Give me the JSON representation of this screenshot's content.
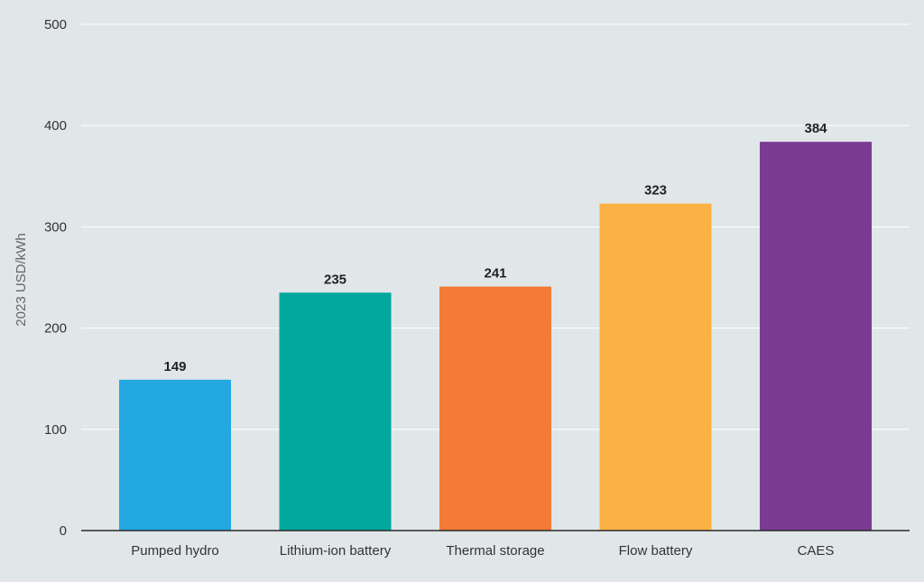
{
  "chart_data": {
    "type": "bar",
    "title": "",
    "xlabel": "",
    "ylabel": "2023 USD/kWh",
    "ylim": [
      0,
      500
    ],
    "yticks": [
      0,
      100,
      200,
      300,
      400,
      500
    ],
    "grid": true,
    "legend": "none",
    "categories": [
      "Pumped hydro",
      "Lithium-ion battery",
      "Thermal storage",
      "Flow battery",
      "CAES"
    ],
    "values": [
      149,
      235,
      241,
      323,
      384
    ],
    "data_labels": [
      "149",
      "235",
      "241",
      "323",
      "384"
    ],
    "colors": [
      "#23a8e0",
      "#00a79d",
      "#f37b35",
      "#fbb244",
      "#7b3b94"
    ]
  },
  "colors": {
    "background": "#e1e6e9",
    "grid": "#ffffff",
    "axis": "#2b2b2b"
  }
}
